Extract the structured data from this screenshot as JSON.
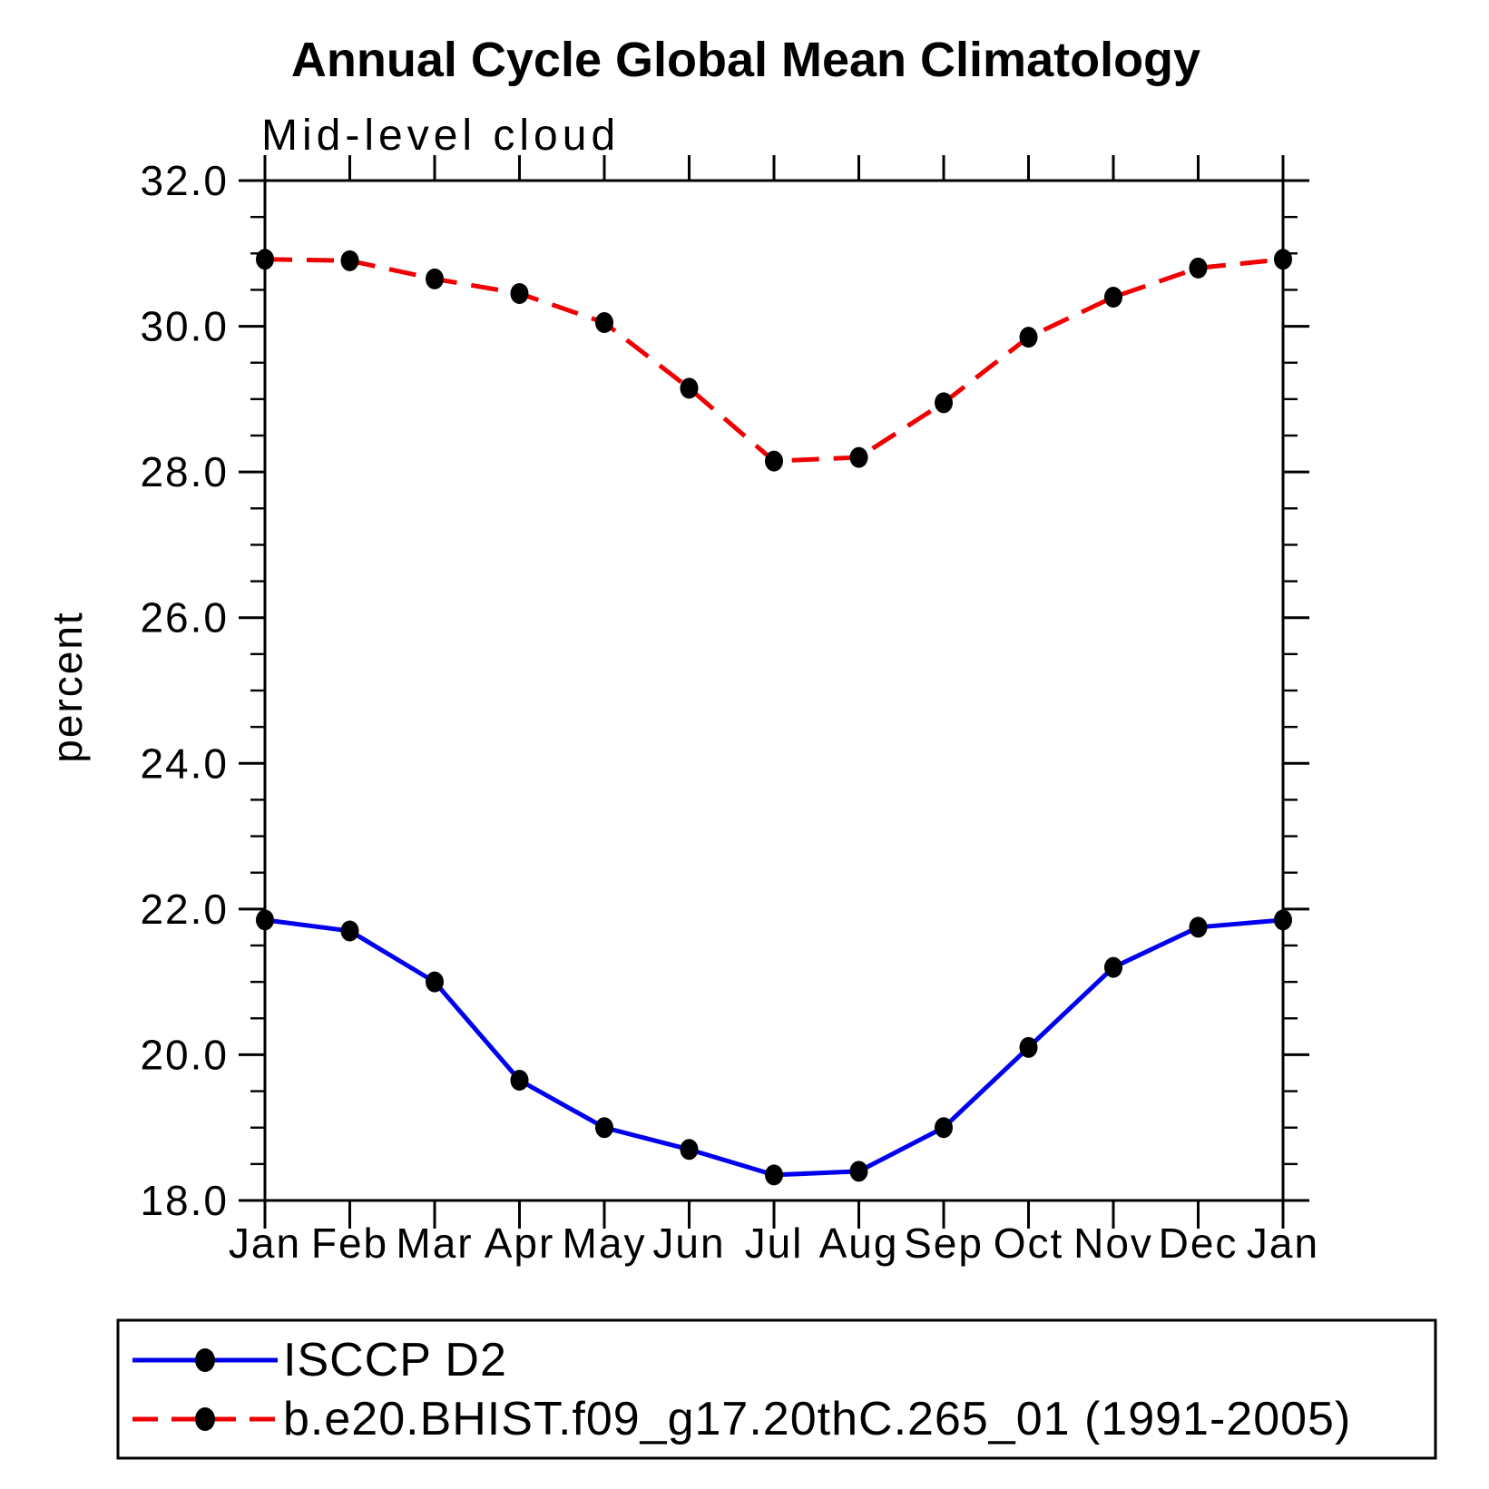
{
  "title": "Annual Cycle Global Mean Climatology",
  "subtitle": "Mid-level cloud",
  "ylabel": "percent",
  "legend": {
    "items": [
      {
        "label": "ISCCP D2"
      },
      {
        "label": "b.e20.BHIST.f09_g17.20thC.265_01 (1991-2005)"
      }
    ]
  },
  "chart_data": {
    "type": "line",
    "title": "Annual Cycle Global Mean Climatology",
    "subtitle": "Mid-level cloud",
    "xlabel": "",
    "ylabel": "percent",
    "x_categories": [
      "Jan",
      "Feb",
      "Mar",
      "Apr",
      "May",
      "Jun",
      "Jul",
      "Aug",
      "Sep",
      "Oct",
      "Nov",
      "Dec",
      "Jan"
    ],
    "series": [
      {
        "name": "ISCCP D2",
        "color": "#0000ee",
        "line_style": "solid",
        "marker": "filled-circle",
        "values": [
          21.85,
          21.7,
          21.0,
          19.65,
          19.0,
          18.7,
          18.35,
          18.4,
          19.0,
          20.1,
          21.2,
          21.75,
          21.85
        ]
      },
      {
        "name": "b.e20.BHIST.f09_g17.20thC.265_01 (1991-2005)",
        "color": "#f00000",
        "line_style": "dashed",
        "marker": "filled-circle",
        "values": [
          30.92,
          30.9,
          30.65,
          30.45,
          30.05,
          29.15,
          28.15,
          28.2,
          28.95,
          29.85,
          30.4,
          30.8,
          30.92
        ]
      }
    ],
    "marker_color": "#000000",
    "ylim": [
      18.0,
      32.0
    ],
    "ytick_step": 2.0,
    "ytick_labels": [
      "18.0",
      "20.0",
      "22.0",
      "24.0",
      "26.0",
      "28.0",
      "30.0",
      "32.0"
    ],
    "y_minor_step": 0.5,
    "grid": false,
    "legend_position": "bottom"
  }
}
